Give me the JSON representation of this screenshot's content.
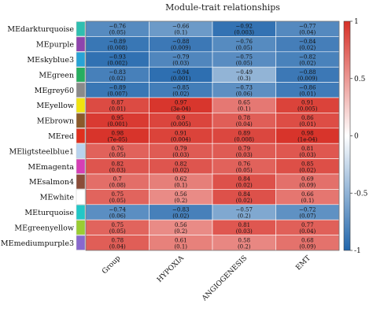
{
  "chart_data": {
    "type": "heatmap",
    "title": "Module-trait relationships",
    "columns": [
      "Group",
      "HYPOXIA",
      "ANGIOGENESIS",
      "EMT"
    ],
    "rows": [
      {
        "name": "MEdarkturquoise",
        "color": "#2fbfb0",
        "cells": [
          {
            "r": -0.76,
            "p": "(0.05)"
          },
          {
            "r": -0.66,
            "p": "(0.1)"
          },
          {
            "r": -0.92,
            "p": "(0.003)"
          },
          {
            "r": -0.77,
            "p": "(0.04)"
          }
        ]
      },
      {
        "name": "MEpurple",
        "color": "#8e44ad",
        "cells": [
          {
            "r": -0.89,
            "p": "(0.008)"
          },
          {
            "r": -0.88,
            "p": "(0.009)"
          },
          {
            "r": -0.76,
            "p": "(0.05)"
          },
          {
            "r": -0.84,
            "p": "(0.02)"
          }
        ]
      },
      {
        "name": "MEskyblue3",
        "color": "#29a3d6",
        "cells": [
          {
            "r": -0.93,
            "p": "(0.002)"
          },
          {
            "r": -0.79,
            "p": "(0.03)"
          },
          {
            "r": -0.75,
            "p": "(0.05)"
          },
          {
            "r": -0.82,
            "p": "(0.02)"
          }
        ]
      },
      {
        "name": "MEgreen",
        "color": "#27ae60",
        "cells": [
          {
            "r": -0.83,
            "p": "(0.02)"
          },
          {
            "r": -0.94,
            "p": "(0.001)"
          },
          {
            "r": -0.49,
            "p": "(0.3)"
          },
          {
            "r": -0.88,
            "p": "(0.009)"
          }
        ]
      },
      {
        "name": "MEgrey60",
        "color": "#8a8a8a",
        "cells": [
          {
            "r": -0.89,
            "p": "(0.007)"
          },
          {
            "r": -0.85,
            "p": "(0.02)"
          },
          {
            "r": -0.73,
            "p": "(0.06)"
          },
          {
            "r": -0.86,
            "p": "(0.01)"
          }
        ]
      },
      {
        "name": "MEyellow",
        "color": "#f1e40f",
        "cells": [
          {
            "r": 0.87,
            "p": "(0.01)"
          },
          {
            "r": 0.97,
            "p": "(3e-04)"
          },
          {
            "r": 0.65,
            "p": "(0.1)"
          },
          {
            "r": 0.91,
            "p": "(0.005)"
          }
        ]
      },
      {
        "name": "MEbrown",
        "color": "#8b5a2b",
        "cells": [
          {
            "r": 0.95,
            "p": "(0.001)"
          },
          {
            "r": 0.9,
            "p": "(0.005)"
          },
          {
            "r": 0.78,
            "p": "(0.04)"
          },
          {
            "r": 0.86,
            "p": "(0.01)"
          }
        ]
      },
      {
        "name": "MEred",
        "color": "#e0301e",
        "cells": [
          {
            "r": 0.98,
            "p": "(7e-05)"
          },
          {
            "r": 0.91,
            "p": "(0.004)"
          },
          {
            "r": 0.89,
            "p": "(0.008)"
          },
          {
            "r": 0.98,
            "p": "(1e-04)"
          }
        ]
      },
      {
        "name": "MEligtsteelblue1",
        "color": "#b9d3ee",
        "cells": [
          {
            "r": 0.76,
            "p": "(0.05)"
          },
          {
            "r": 0.79,
            "p": "(0.03)"
          },
          {
            "r": 0.79,
            "p": "(0.03)"
          },
          {
            "r": 0.81,
            "p": "(0.03)"
          }
        ]
      },
      {
        "name": "MEmagenta",
        "color": "#d63fb5",
        "cells": [
          {
            "r": 0.82,
            "p": "(0.03)"
          },
          {
            "r": 0.82,
            "p": "(0.02)"
          },
          {
            "r": 0.76,
            "p": "(0.05)"
          },
          {
            "r": 0.85,
            "p": "(0.02)"
          }
        ]
      },
      {
        "name": "MEsalmon4",
        "color": "#8b4c39",
        "cells": [
          {
            "r": 0.7,
            "p": "(0.08)"
          },
          {
            "r": 0.62,
            "p": "(0.1)"
          },
          {
            "r": 0.84,
            "p": "(0.02)"
          },
          {
            "r": 0.69,
            "p": "(0.09)"
          }
        ]
      },
      {
        "name": "MEwhite",
        "color": "#ffffff",
        "cells": [
          {
            "r": 0.75,
            "p": "(0.05)"
          },
          {
            "r": 0.56,
            "p": "(0.2)"
          },
          {
            "r": 0.84,
            "p": "(0.02)"
          },
          {
            "r": 0.66,
            "p": "(0.1)"
          }
        ]
      },
      {
        "name": "MEturquoise",
        "color": "#22c7c7",
        "cells": [
          {
            "r": -0.74,
            "p": "(0.06)"
          },
          {
            "r": -0.83,
            "p": "(0.02)"
          },
          {
            "r": -0.57,
            "p": "(0.2)"
          },
          {
            "r": -0.72,
            "p": "(0.07)"
          }
        ]
      },
      {
        "name": "MEgreenyellow",
        "color": "#9acd32",
        "cells": [
          {
            "r": 0.75,
            "p": "(0.05)"
          },
          {
            "r": 0.56,
            "p": "(0.2)"
          },
          {
            "r": 0.81,
            "p": "(0.03)"
          },
          {
            "r": 0.77,
            "p": "(0.04)"
          }
        ]
      },
      {
        "name": "MEmediumpurple3",
        "color": "#8968cd",
        "cells": [
          {
            "r": 0.78,
            "p": "(0.04)"
          },
          {
            "r": 0.61,
            "p": "(0.1)"
          },
          {
            "r": 0.58,
            "p": "(0.2)"
          },
          {
            "r": 0.68,
            "p": "(0.09)"
          }
        ]
      }
    ],
    "color_scale": {
      "min": -1,
      "max": 1,
      "low": "#2166ac",
      "mid": "#ffffff",
      "high": "#d73027"
    },
    "colorbar_ticks": [
      1,
      0.5,
      0,
      -0.5,
      -1
    ],
    "colorbar_tick_labels": [
      "1",
      "0.5",
      "0",
      "-0.5",
      "-1"
    ]
  }
}
